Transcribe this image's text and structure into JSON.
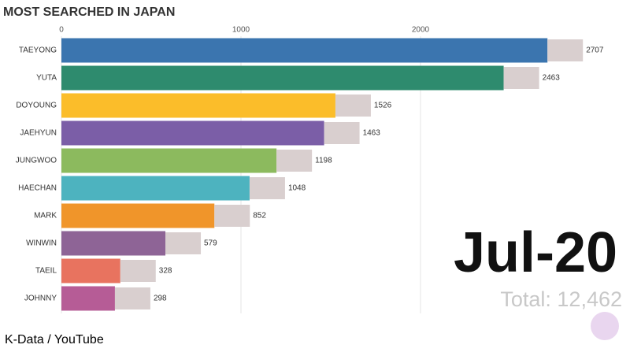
{
  "chart_data": {
    "type": "bar",
    "orientation": "horizontal",
    "title": "MOST SEARCHED IN JAPAN",
    "categories": [
      "TAEYONG",
      "YUTA",
      "DOYOUNG",
      "JAEHYUN",
      "JUNGWOO",
      "HAECHAN",
      "MARK",
      "WINWIN",
      "TAEIL",
      "JOHNNY"
    ],
    "values": [
      2707,
      2463,
      1526,
      1463,
      1198,
      1048,
      852,
      579,
      328,
      298
    ],
    "colors": [
      "#3b75af",
      "#2e8b6e",
      "#fbbd2a",
      "#7b5ea7",
      "#8cba5e",
      "#4db3bf",
      "#f0952a",
      "#8e6496",
      "#e8735f",
      "#b65c96"
    ],
    "xlim": [
      0,
      3000
    ],
    "xticks": [
      0,
      1000,
      2000
    ],
    "grid": true,
    "date": "Jul-20",
    "total": "Total: 12,462"
  },
  "source": "K-Data / YouTube"
}
